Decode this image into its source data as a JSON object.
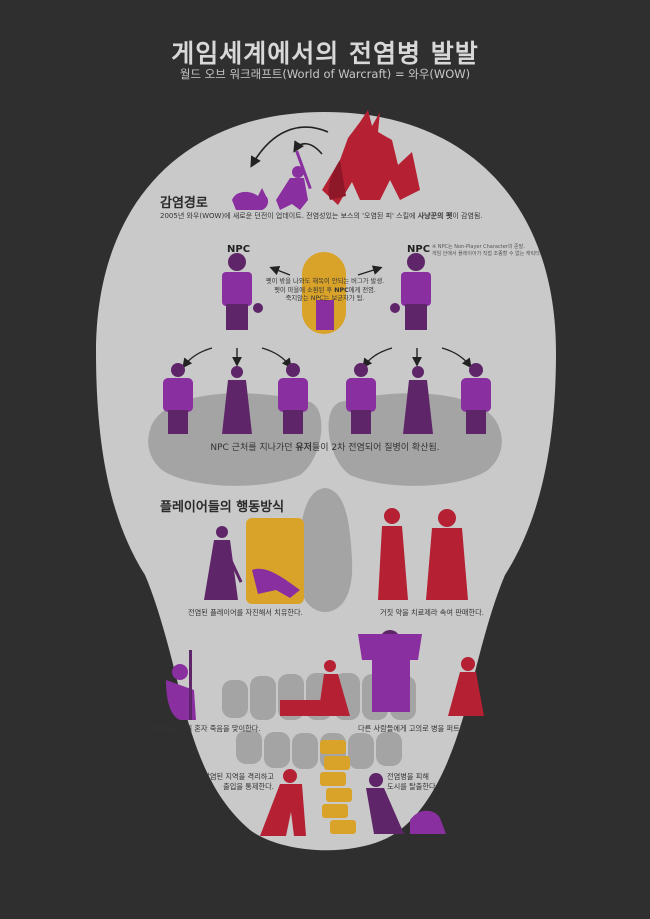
{
  "title": "게임세계에서의 전염병 발발",
  "subtitle": "월드 오브 워크래프트(World of Warcraft) = 와우(WOW)",
  "colors": {
    "background": "#2f2f2f",
    "skull": "#c9c9c9",
    "shadow": "#a4a4a4",
    "purple": "#8a2fa0",
    "dark_purple": "#5e2668",
    "red": "#b52033",
    "gold": "#d9a32a"
  },
  "section1": {
    "heading": "감염경로",
    "desc_pre": "2005년 와우(WOW)에 새로운 던전이 업데이트. 전염성있는 보스의 '오염된 피' 스킬에 ",
    "desc_bold": "사냥꾼의 펫",
    "desc_post": "이 감염됨.",
    "npc_left": "NPC",
    "npc_right": "NPC",
    "npc_note_1": "※ NPC는 Non-Player Character의 준말.",
    "npc_note_2": "게임 안에서 플레이어가 직접 조종할 수 없는 캐릭터.",
    "pet_line1": "펫이 밖을 나와도 해독이 안되는 버그가 발생.",
    "pet_line2_pre": "펫이 마을에 소환된 후 ",
    "pet_line2_bold": "NPC",
    "pet_line2_post": "에게 전염.",
    "pet_line3": "죽지않는 NPC는 보균자가 됨.",
    "spread_pre": "NPC 근처를 지나가던 ",
    "spread_bold": "유저",
    "spread_post": "들이 2차 전염되어 질병이 확산됨."
  },
  "section2": {
    "heading": "플레이어들의 행동방식",
    "cap_heal": "전염된 플레이어를 자진해서 치유한다.",
    "cap_sell": "거짓 약을 치료제라 속여 판매한다.",
    "cap_isolate": "사람들을 피해 혼자 죽음을 맞이한다.",
    "cap_spread": "다른 사람들에게 고의로 병을 퍼트린다.",
    "cap_quarantine_1": "감염된 지역을 격리하고",
    "cap_quarantine_2": "출입을 통제한다.",
    "cap_flee_1": "전염병을 피해",
    "cap_flee_2": "도시를 탈출한다."
  }
}
